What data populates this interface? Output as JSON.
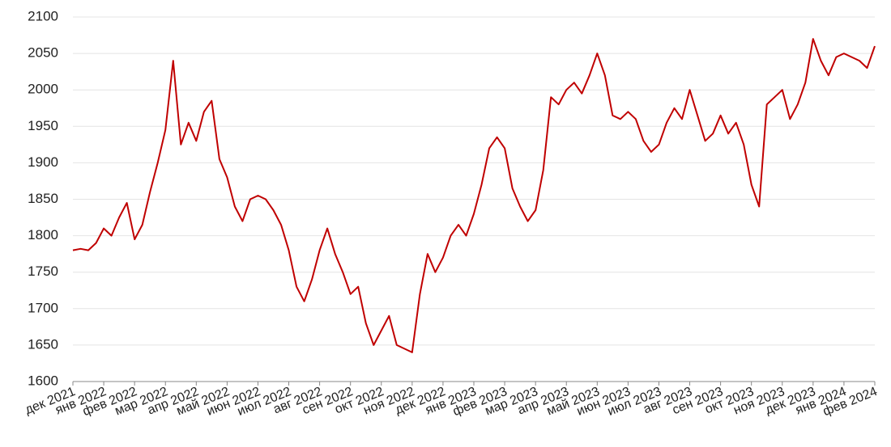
{
  "chart_data": {
    "type": "line",
    "categories": [
      "дек 2021",
      null,
      null,
      null,
      "янв 2022",
      null,
      null,
      null,
      "фев 2022",
      null,
      null,
      null,
      "мар 2022",
      null,
      null,
      null,
      "апр 2022",
      null,
      null,
      null,
      "май 2022",
      null,
      null,
      null,
      "июн 2022",
      null,
      null,
      null,
      "июл 2022",
      null,
      null,
      null,
      "авг 2022",
      null,
      null,
      null,
      "сен 2022",
      null,
      null,
      null,
      "окт 2022",
      null,
      null,
      null,
      "ноя 2022",
      null,
      null,
      null,
      "дек 2022",
      null,
      null,
      null,
      "янв 2023",
      null,
      null,
      null,
      "фев 2023",
      null,
      null,
      null,
      "мар 2023",
      null,
      null,
      null,
      "апр 2023",
      null,
      null,
      null,
      "май 2023",
      null,
      null,
      null,
      "июн 2023",
      null,
      null,
      null,
      "июл 2023",
      null,
      null,
      null,
      "авг 2023",
      null,
      null,
      null,
      "сен 2023",
      null,
      null,
      null,
      "окт 2023",
      null,
      null,
      null,
      "ноя 2023",
      null,
      null,
      null,
      "дек 2023",
      null,
      null,
      null,
      "янв 2024",
      null,
      null,
      null,
      "фев 2024"
    ],
    "values": [
      1780,
      1782,
      1780,
      1790,
      1810,
      1800,
      1825,
      1845,
      1795,
      1815,
      1860,
      1900,
      1945,
      2040,
      1925,
      1955,
      1930,
      1970,
      1985,
      1905,
      1880,
      1840,
      1820,
      1850,
      1855,
      1850,
      1835,
      1815,
      1780,
      1730,
      1710,
      1740,
      1780,
      1810,
      1775,
      1750,
      1720,
      1730,
      1680,
      1650,
      1670,
      1690,
      1650,
      1645,
      1640,
      1720,
      1775,
      1750,
      1770,
      1800,
      1815,
      1800,
      1830,
      1870,
      1920,
      1935,
      1920,
      1865,
      1840,
      1820,
      1835,
      1890,
      1990,
      1980,
      2000,
      2010,
      1995,
      2020,
      2050,
      2020,
      1965,
      1960,
      1970,
      1960,
      1930,
      1915,
      1925,
      1955,
      1975,
      1960,
      2000,
      1965,
      1930,
      1940,
      1965,
      1940,
      1955,
      1925,
      1870,
      1840,
      1980,
      1990,
      2000,
      1960,
      1980,
      2010,
      2070,
      2040,
      2020,
      2045,
      2050,
      2045,
      2040,
      2030,
      2060
    ],
    "color": "#c00000",
    "ylim": [
      1600,
      2100
    ],
    "yticks": [
      1600,
      1650,
      1700,
      1750,
      1800,
      1850,
      1900,
      1950,
      2000,
      2050,
      2100
    ],
    "grid": true
  }
}
